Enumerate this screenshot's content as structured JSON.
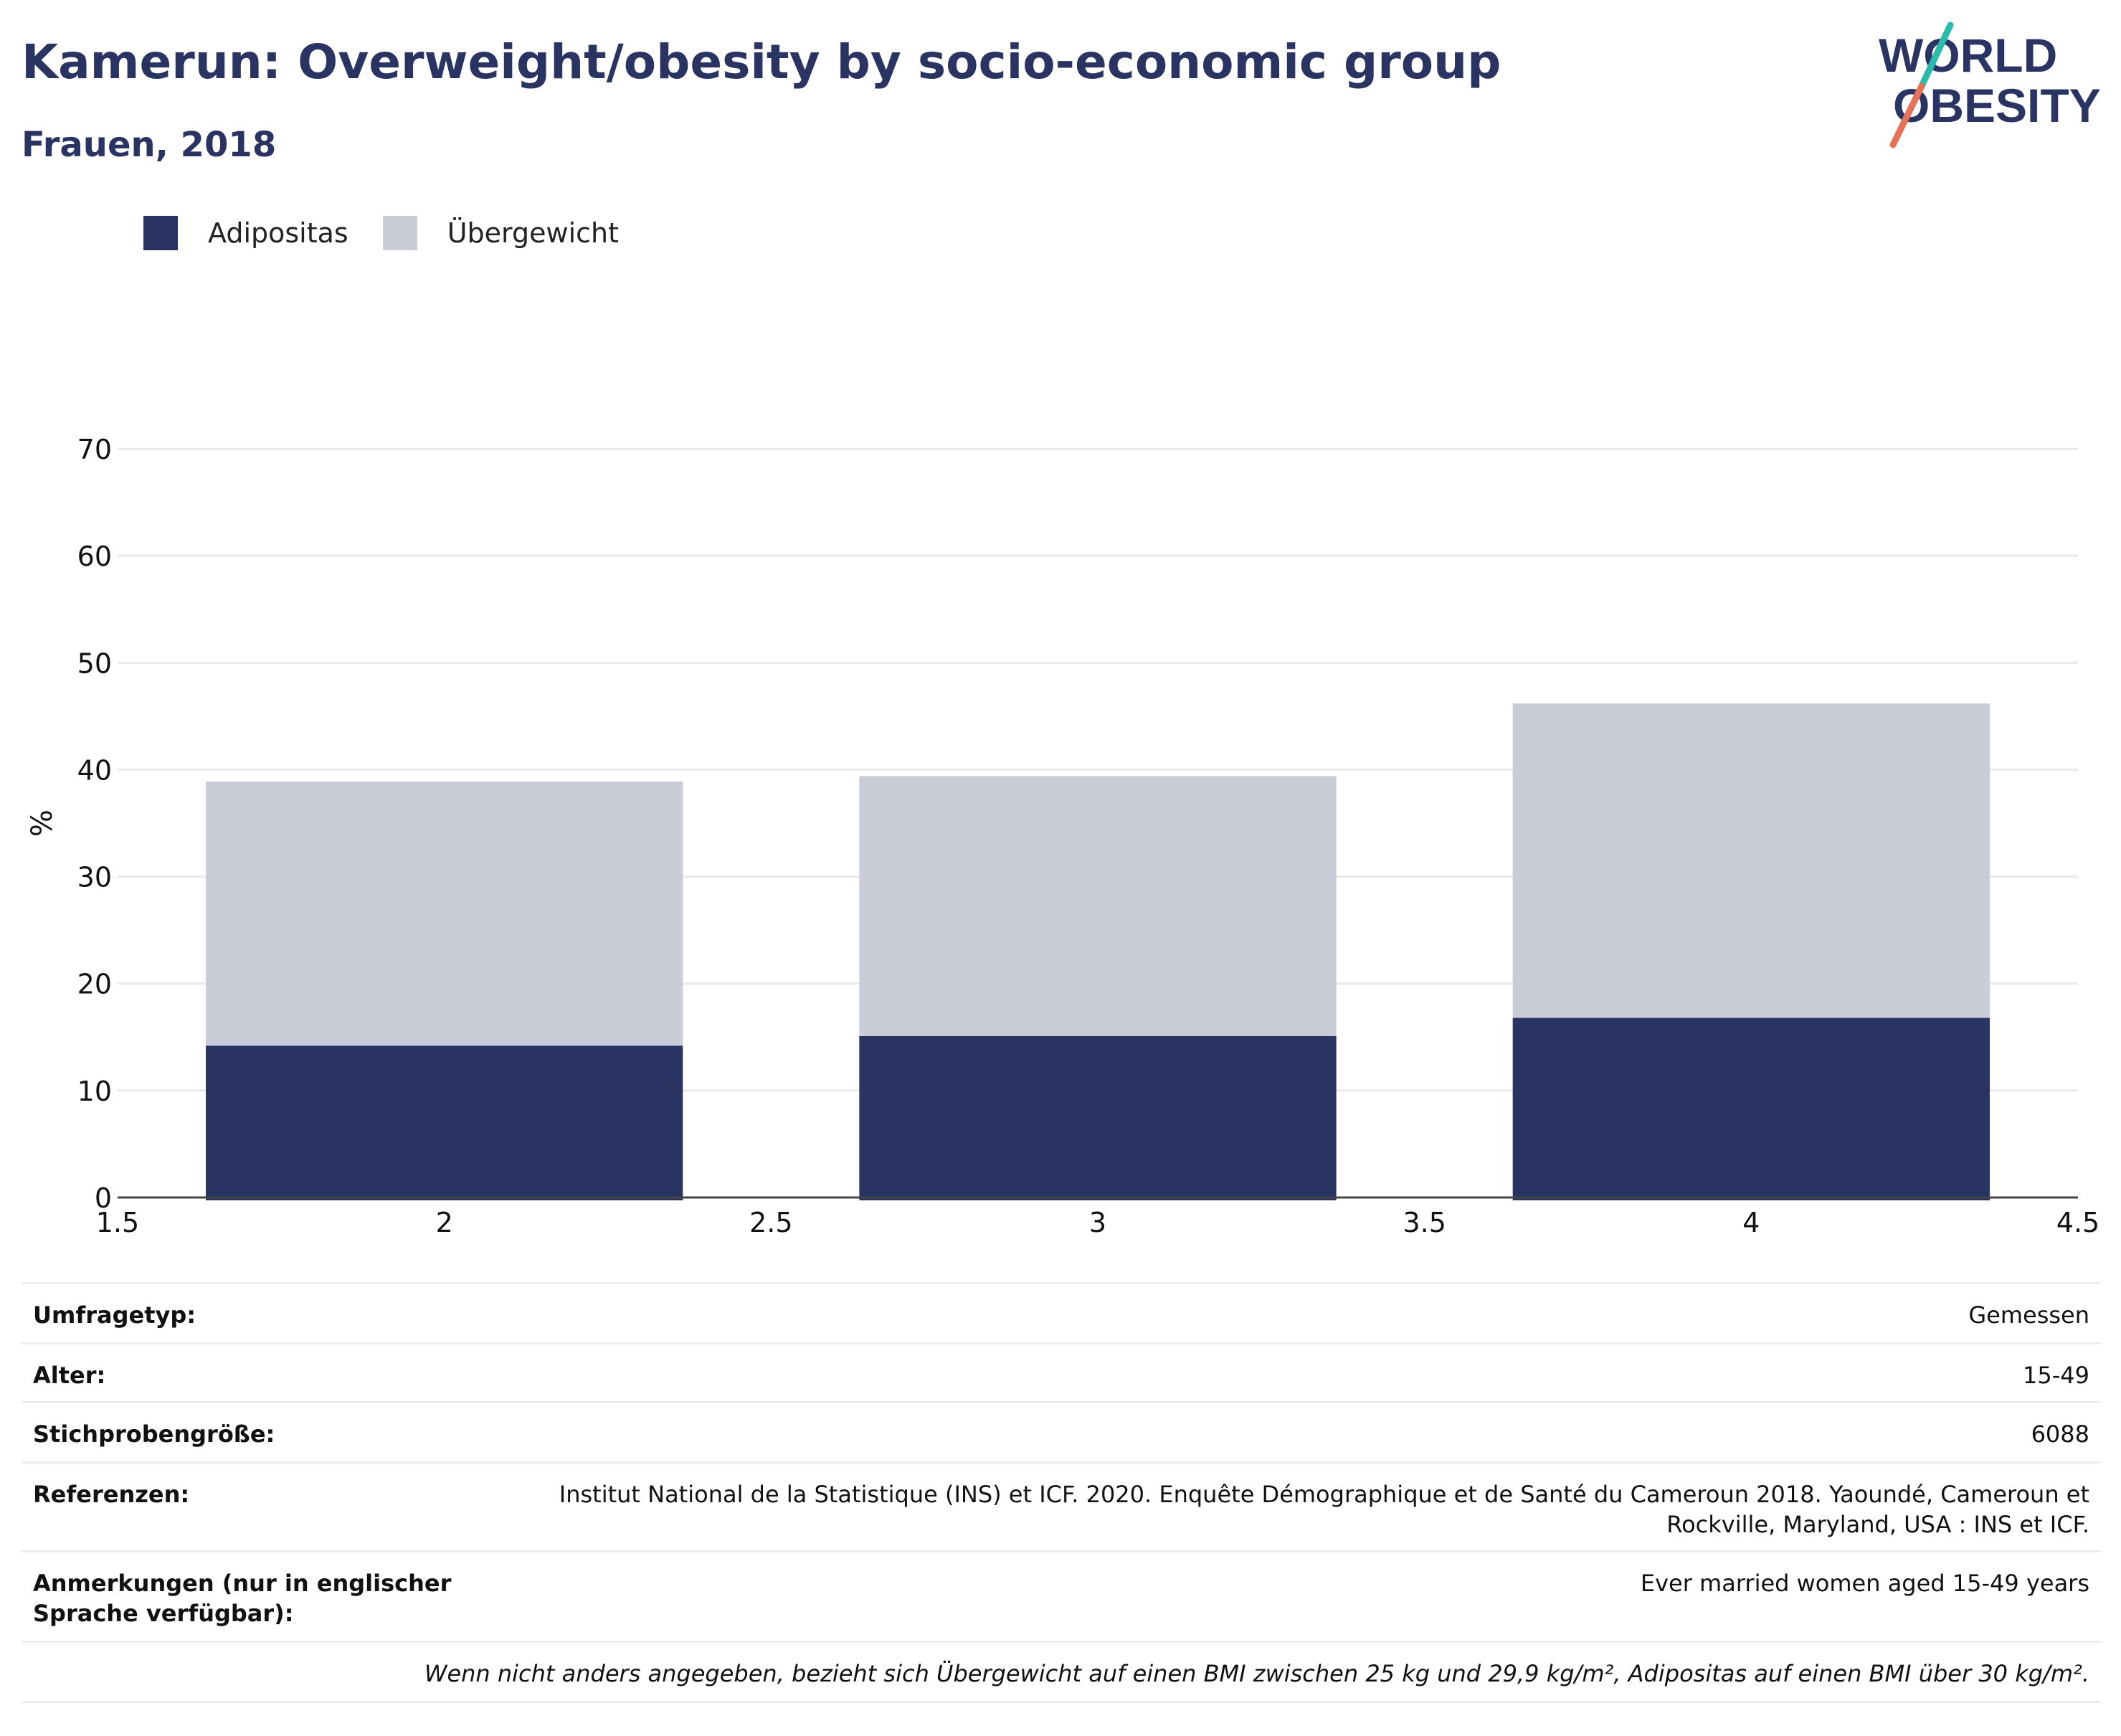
{
  "header": {
    "title": "Kamerun: Overweight/obesity by socio-economic group",
    "subtitle": "Frauen, 2018"
  },
  "logo": {
    "line1": "WORLD",
    "line2": "OBESITY",
    "colors": {
      "text": "#293462",
      "slash_top": "#2bbbad",
      "slash_bottom": "#e8715a"
    }
  },
  "legend": [
    {
      "label": "Adipositas",
      "color": "#293462"
    },
    {
      "label": "Übergewicht",
      "color": "#cacdd7"
    }
  ],
  "chart_data": {
    "type": "bar",
    "stacked": true,
    "x": [
      2,
      3,
      4
    ],
    "series": [
      {
        "name": "Adipositas",
        "color": "#293462",
        "values": [
          14.2,
          15.1,
          16.8
        ]
      },
      {
        "name": "Übergewicht",
        "color": "#cacdd7",
        "values": [
          24.7,
          24.3,
          29.4
        ]
      }
    ],
    "xlim": [
      1.5,
      4.5
    ],
    "xticks": [
      "1.5",
      "2",
      "2.5",
      "3",
      "3.5",
      "4",
      "4.5"
    ],
    "xtick_values": [
      1.5,
      2,
      2.5,
      3,
      3.5,
      4,
      4.5
    ],
    "ylim": [
      0,
      70
    ],
    "yticks": [
      "0",
      "10",
      "20",
      "30",
      "40",
      "50",
      "60",
      "70"
    ],
    "ytick_values": [
      0,
      10,
      20,
      30,
      40,
      50,
      60,
      70
    ],
    "ylabel": "%",
    "xlabel": "",
    "grid": true,
    "legend_position": "top-left"
  },
  "info": {
    "rows": [
      {
        "label": "Umfragetyp:",
        "value": "Gemessen"
      },
      {
        "label": "Alter:",
        "value": "15-49"
      },
      {
        "label": "Stichprobengröße:",
        "value": "6088"
      },
      {
        "label": "Referenzen:",
        "value": "Institut National de la Statistique (INS) et ICF. 2020. Enquête Démographique et de Santé du Cameroun 2018. Yaoundé, Cameroun et Rockville, Maryland, USA : INS et ICF."
      },
      {
        "label": "Anmerkungen (nur in englischer Sprache verfügbar):",
        "value": "Ever married women aged 15-49 years"
      }
    ],
    "footnote": "Wenn nicht anders angegeben, bezieht sich Übergewicht auf einen BMI zwischen 25 kg und 29,9 kg/m², Adipositas auf einen BMI über 30 kg/m²."
  }
}
